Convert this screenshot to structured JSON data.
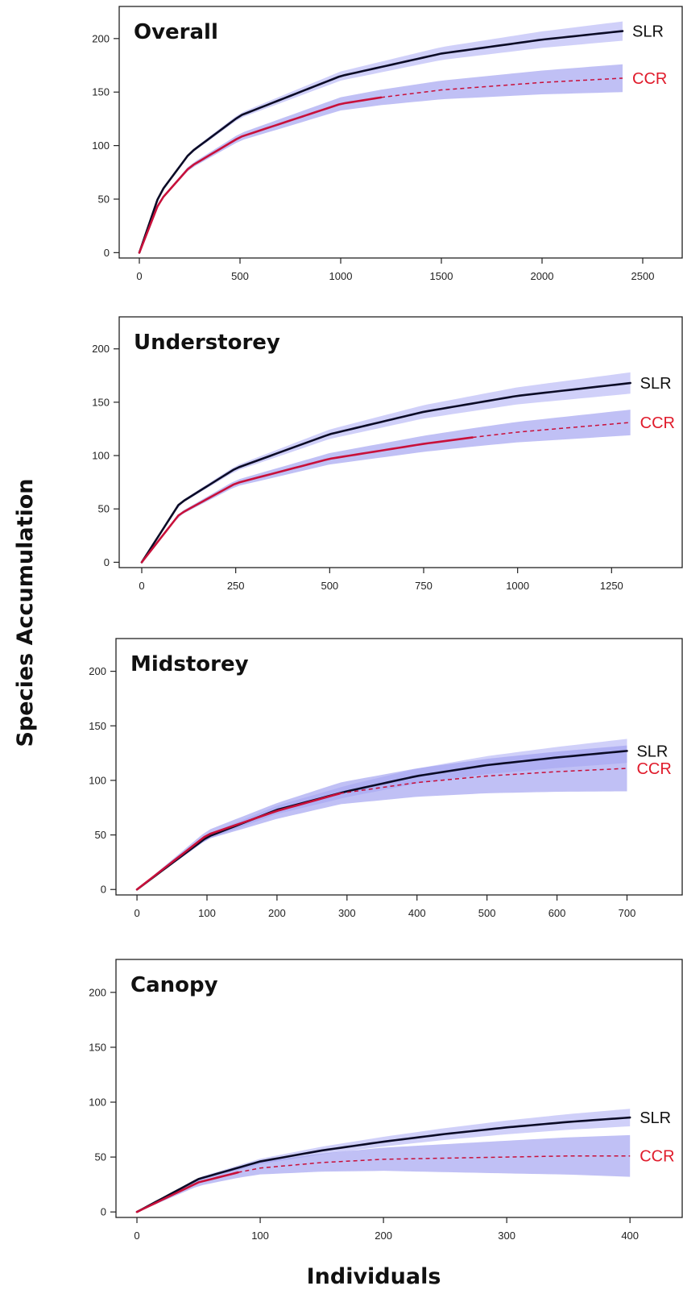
{
  "figure": {
    "ylabel": "Species Accumulation",
    "xlabel": "Individuals"
  },
  "colors": {
    "slr_line": "#0b0b26",
    "ccr_line": "#c8103a",
    "slr_band": "#c4c4f7",
    "ccr_band": "#9e9ef0",
    "slr_label": "#111111",
    "ccr_label": "#e01b2b"
  },
  "chart_data": [
    {
      "type": "line",
      "title": "Overall",
      "xlim": [
        -100,
        2700
      ],
      "ylim": [
        -5,
        230
      ],
      "xticks": [
        0,
        500,
        1000,
        1500,
        2000,
        2500
      ],
      "yticks": [
        0,
        50,
        100,
        150,
        200
      ],
      "series": [
        {
          "name": "SLR",
          "observed_max": 2400,
          "extrapolated_max": 2400,
          "final": 207,
          "band_width": 9,
          "x": [
            0,
            100,
            250,
            500,
            1000,
            1500,
            2000,
            2400
          ],
          "y": [
            0,
            55,
            93,
            128,
            165,
            186,
            199,
            207
          ]
        },
        {
          "name": "CCR",
          "observed_max": 1200,
          "extrapolated_max": 2400,
          "final": 163,
          "band_width": 13,
          "x": [
            0,
            100,
            250,
            500,
            1000,
            1200,
            1500,
            2000,
            2400
          ],
          "y": [
            0,
            48,
            80,
            108,
            139,
            145,
            152,
            159,
            163
          ]
        }
      ]
    },
    {
      "type": "line",
      "title": "Understorey",
      "xlim": [
        -60,
        1440
      ],
      "ylim": [
        -5,
        230
      ],
      "xticks": [
        0,
        250,
        500,
        750,
        1000,
        1250
      ],
      "yticks": [
        0,
        50,
        100,
        150,
        200
      ],
      "series": [
        {
          "name": "SLR",
          "observed_max": 1300,
          "extrapolated_max": 1300,
          "final": 168,
          "band_width": 10,
          "x": [
            0,
            100,
            250,
            500,
            750,
            1000,
            1300
          ],
          "y": [
            0,
            55,
            88,
            120,
            141,
            156,
            168
          ]
        },
        {
          "name": "CCR",
          "observed_max": 880,
          "extrapolated_max": 1300,
          "final": 131,
          "band_width": 12,
          "x": [
            0,
            100,
            250,
            500,
            750,
            880,
            1000,
            1300
          ],
          "y": [
            0,
            45,
            74,
            97,
            111,
            117,
            122,
            131
          ]
        }
      ]
    },
    {
      "type": "line",
      "title": "Midstorey",
      "xlim": [
        -30,
        780
      ],
      "ylim": [
        -5,
        230
      ],
      "xticks": [
        0,
        100,
        200,
        300,
        400,
        500,
        600,
        700
      ],
      "yticks": [
        0,
        50,
        100,
        150,
        200
      ],
      "series": [
        {
          "name": "SLR",
          "observed_max": 700,
          "extrapolated_max": 700,
          "final": 127,
          "band_width": 11,
          "x": [
            0,
            100,
            200,
            300,
            400,
            500,
            600,
            700
          ],
          "y": [
            0,
            48,
            73,
            90,
            104,
            114,
            121,
            127
          ]
        },
        {
          "name": "CCR",
          "observed_max": 290,
          "extrapolated_max": 700,
          "final": 111,
          "band_width": 21,
          "x": [
            0,
            100,
            200,
            290,
            300,
            400,
            500,
            600,
            700
          ],
          "y": [
            0,
            50,
            72,
            88,
            89,
            98,
            104,
            108,
            111
          ]
        }
      ]
    },
    {
      "type": "line",
      "title": "Canopy",
      "xlim": [
        -17,
        443
      ],
      "ylim": [
        -5,
        230
      ],
      "xticks": [
        0,
        100,
        200,
        300,
        400
      ],
      "yticks": [
        0,
        50,
        100,
        150,
        200
      ],
      "series": [
        {
          "name": "SLR",
          "observed_max": 400,
          "extrapolated_max": 400,
          "final": 86,
          "band_width": 8,
          "x": [
            0,
            50,
            100,
            150,
            200,
            250,
            300,
            350,
            400
          ],
          "y": [
            0,
            30,
            46,
            56,
            64,
            71,
            77,
            82,
            86
          ]
        },
        {
          "name": "CCR",
          "observed_max": 82,
          "extrapolated_max": 400,
          "final": 51,
          "band_width": 19,
          "x": [
            0,
            50,
            82,
            100,
            150,
            200,
            250,
            300,
            350,
            400
          ],
          "y": [
            0,
            27,
            36,
            40,
            45,
            48,
            49,
            50,
            51,
            51
          ]
        }
      ]
    }
  ]
}
